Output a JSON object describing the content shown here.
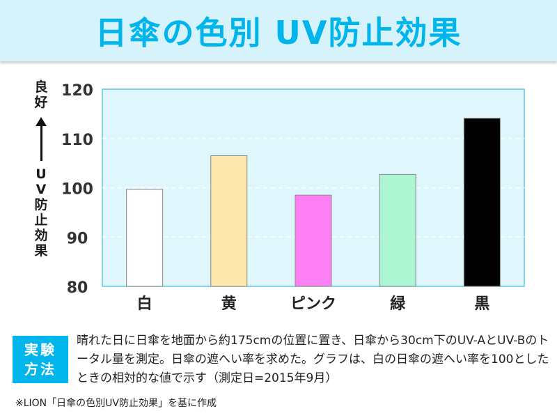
{
  "title": "日傘の色別 UV防止効果",
  "ylabel_top": [
    "良",
    "好"
  ],
  "ylabel_bottom": [
    "U",
    "V",
    "防",
    "止",
    "効",
    "果"
  ],
  "chart_data": {
    "type": "bar",
    "categories": [
      "白",
      "黄",
      "ピンク",
      "緑",
      "黒"
    ],
    "values": [
      99.7,
      106.5,
      98.5,
      102.7,
      114.1
    ],
    "bar_colors": [
      "#ffffff",
      "#fde8ae",
      "#ff80f5",
      "#adf6d4",
      "#000000"
    ],
    "ylim": [
      80,
      120
    ],
    "yticks": [
      80,
      90,
      100,
      110,
      120
    ],
    "ylabel": "良好 ↑ UV防止効果",
    "xlabel": "",
    "grid": true,
    "plot_background": "#dff7fc"
  },
  "method_label": [
    "実験",
    "方法"
  ],
  "description": "晴れた日に日傘を地面から約175cmの位置に置き、日傘から30cm下のUV-AとUV-Bのトータル量を測定。日傘の遮へい率を求めた。グラフは、白の日傘の遮へい率を100としたときの相対的な値で示す（測定日=2015年9月）",
  "source": "※LION「日傘の色別UV防止効果」を基に作成",
  "colors": {
    "accent": "#00b4ec",
    "banner": "#d6f2fb"
  }
}
